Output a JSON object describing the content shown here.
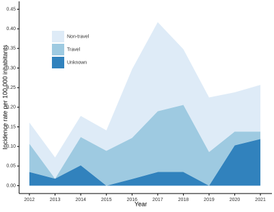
{
  "chart_data": {
    "type": "stacked_area",
    "x_label": "Year",
    "y_label": "Incidence rate per 100,000 inhabitants",
    "x": [
      2012,
      2013,
      2014,
      2015,
      2016,
      2017,
      2018,
      2019,
      2020,
      2021
    ],
    "series": [
      {
        "name": "Unknown",
        "color": "#3182bd",
        "values": [
          0.035,
          0.018,
          0.052,
          0,
          0.017,
          0.035,
          0.035,
          0,
          0.103,
          0.119
        ]
      },
      {
        "name": "Travel",
        "color": "#9ecae1",
        "values": [
          0.072,
          0,
          0.072,
          0.089,
          0.105,
          0.155,
          0.171,
          0.086,
          0.035,
          0.019
        ]
      },
      {
        "name": "Non-travel",
        "color": "#deebf7",
        "values": [
          0.054,
          0.054,
          0.054,
          0.052,
          0.175,
          0.227,
          0.142,
          0.139,
          0.1,
          0.119
        ]
      }
    ],
    "xlim": [
      2011.6,
      2021.45
    ],
    "ylim": [
      -0.02,
      0.47
    ],
    "xticks": [
      2012,
      2013,
      2014,
      2015,
      2016,
      2017,
      2018,
      2019,
      2020,
      2021
    ],
    "yticks": [
      {
        "value": 0,
        "label": "0.00"
      },
      {
        "value": 0.05,
        "label": "0.05"
      },
      {
        "value": 0.1,
        "label": "0.10"
      },
      {
        "value": 0.15,
        "label": "0.15"
      },
      {
        "value": 0.2,
        "label": "0.20"
      },
      {
        "value": 0.25,
        "label": "0.25"
      },
      {
        "value": 0.3,
        "label": "0.30"
      },
      {
        "value": 0.35,
        "label": "0.35"
      },
      {
        "value": 0.4,
        "label": "0.40"
      },
      {
        "value": 0.45,
        "label": "0.45"
      }
    ],
    "legend_order": [
      "Non-travel",
      "Travel",
      "Unknown"
    ]
  }
}
